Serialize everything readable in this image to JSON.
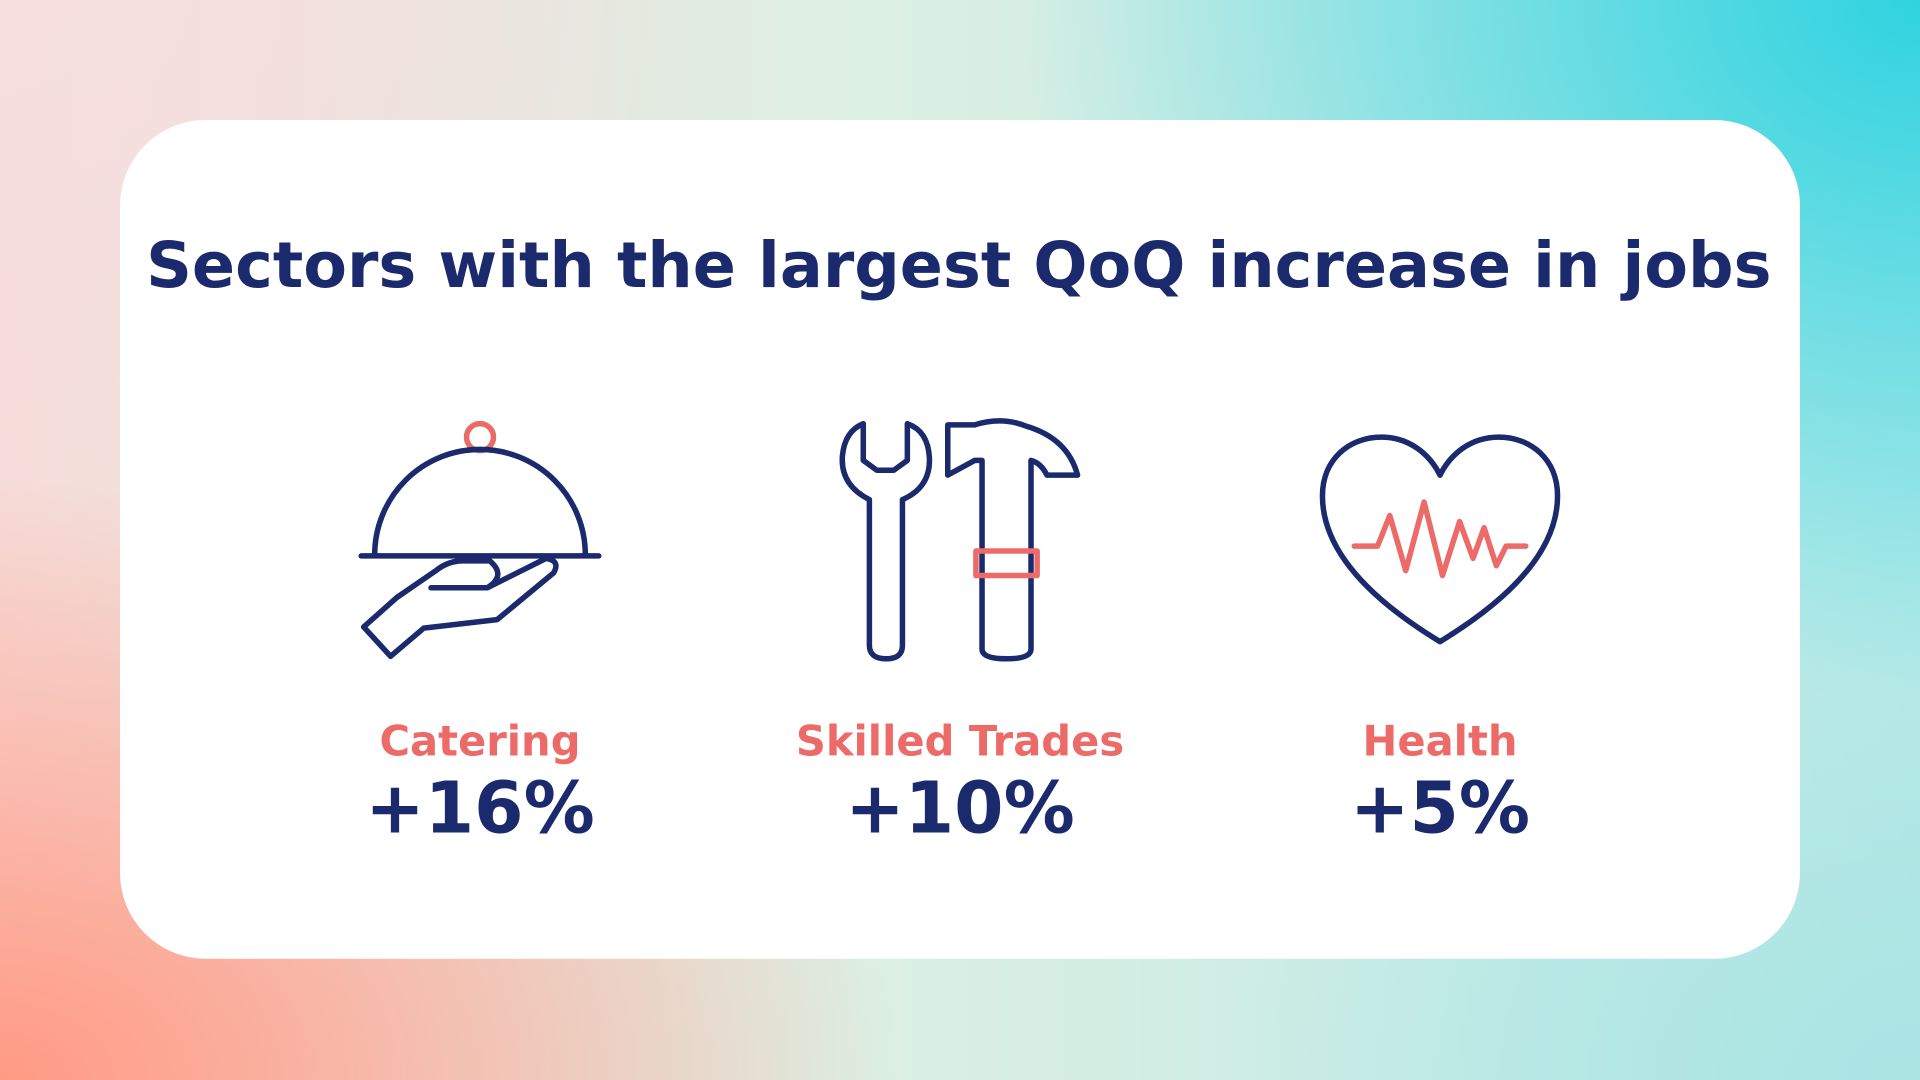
{
  "title": "Sectors with the largest QoQ increase in jobs",
  "items": [
    {
      "label": "Catering",
      "value": "+16%"
    },
    {
      "label": "Skilled Trades",
      "value": "+10%"
    },
    {
      "label": "Health",
      "value": "+5%"
    }
  ]
}
